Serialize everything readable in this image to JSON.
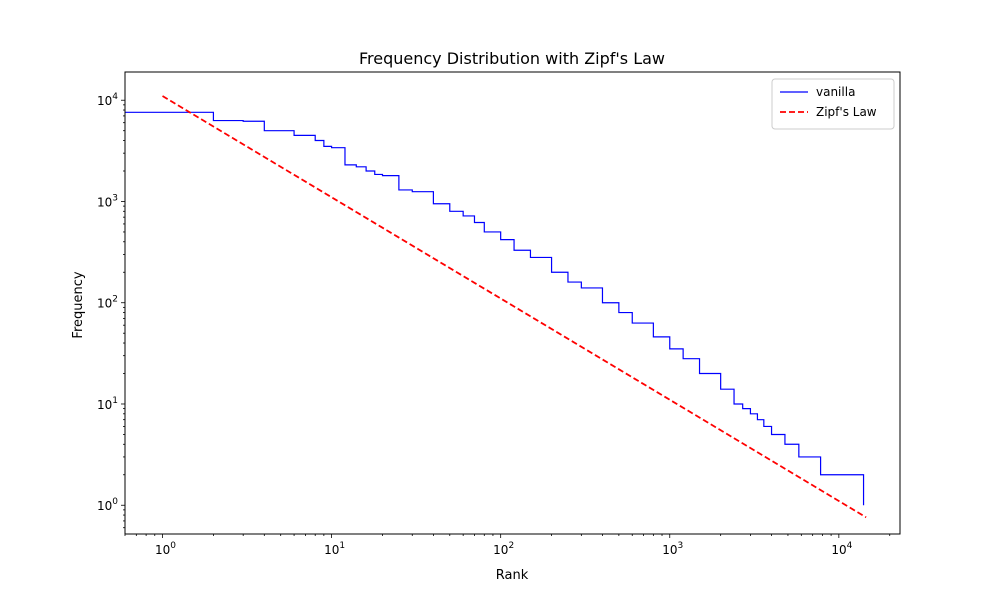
{
  "chart_data": {
    "type": "line",
    "title": "Frequency Distribution with Zipf's Law",
    "xlabel": "Rank",
    "ylabel": "Frequency",
    "x_scale": "log",
    "y_scale": "log",
    "xlim": [
      0.6,
      23000
    ],
    "ylim": [
      0.52,
      19000
    ],
    "grid": false,
    "legend_position": "top-right",
    "x_ticks": [
      {
        "base": "10",
        "exp": "0"
      },
      {
        "base": "10",
        "exp": "1"
      },
      {
        "base": "10",
        "exp": "2"
      },
      {
        "base": "10",
        "exp": "3"
      },
      {
        "base": "10",
        "exp": "4"
      }
    ],
    "y_ticks": [
      {
        "base": "10",
        "exp": "0"
      },
      {
        "base": "10",
        "exp": "1"
      },
      {
        "base": "10",
        "exp": "2"
      },
      {
        "base": "10",
        "exp": "3"
      },
      {
        "base": "10",
        "exp": "4"
      }
    ],
    "series": [
      {
        "name": "vanilla",
        "color": "#0000ff",
        "style": "solid",
        "step": true,
        "points": [
          [
            0.6,
            7600
          ],
          [
            1,
            7600
          ],
          [
            2,
            6300
          ],
          [
            3,
            6200
          ],
          [
            4,
            5000
          ],
          [
            6,
            4500
          ],
          [
            8,
            4000
          ],
          [
            9,
            3500
          ],
          [
            10,
            3400
          ],
          [
            12,
            2300
          ],
          [
            14,
            2200
          ],
          [
            16,
            2000
          ],
          [
            18,
            1850
          ],
          [
            20,
            1800
          ],
          [
            25,
            1300
          ],
          [
            30,
            1250
          ],
          [
            40,
            950
          ],
          [
            50,
            800
          ],
          [
            60,
            720
          ],
          [
            70,
            620
          ],
          [
            80,
            500
          ],
          [
            100,
            420
          ],
          [
            120,
            330
          ],
          [
            150,
            280
          ],
          [
            200,
            200
          ],
          [
            250,
            160
          ],
          [
            300,
            140
          ],
          [
            400,
            100
          ],
          [
            500,
            80
          ],
          [
            600,
            63
          ],
          [
            800,
            46
          ],
          [
            1000,
            35
          ],
          [
            1200,
            28
          ],
          [
            1500,
            20
          ],
          [
            2000,
            14
          ],
          [
            2400,
            10
          ],
          [
            2700,
            9
          ],
          [
            3000,
            8
          ],
          [
            3300,
            7
          ],
          [
            3600,
            6
          ],
          [
            4000,
            5
          ],
          [
            4800,
            4
          ],
          [
            5800,
            3
          ],
          [
            7800,
            2
          ],
          [
            14000,
            1
          ]
        ]
      },
      {
        "name": "Zipf's Law",
        "color": "#ff0000",
        "style": "dashed",
        "step": false,
        "points": [
          [
            1,
            11000
          ],
          [
            14500,
            0.76
          ]
        ]
      }
    ]
  }
}
